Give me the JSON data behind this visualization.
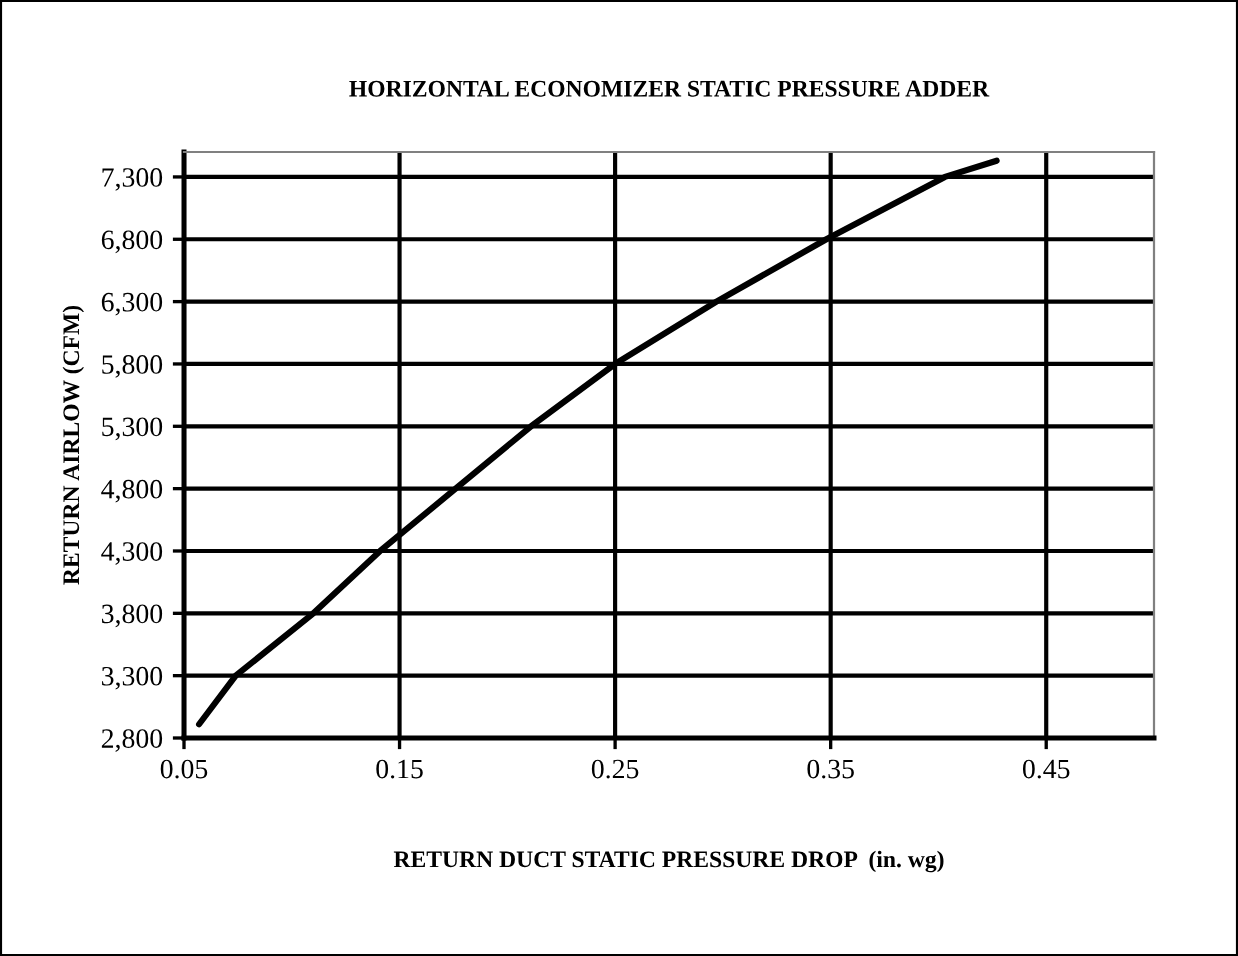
{
  "chart_data": {
    "type": "line",
    "title": "HORIZONTAL ECONOMIZER STATIC PRESSURE ADDER",
    "xlabel": "RETURN DUCT STATIC PRESSURE DROP  (in. wg)",
    "ylabel": "RETURN AIRLOW (CFM)",
    "series": [
      {
        "color": "#000000",
        "x": [
          0.057,
          0.074,
          0.11,
          0.141,
          0.176,
          0.211,
          0.25,
          0.297,
          0.348,
          0.403,
          0.427
        ],
        "values": [
          2910,
          3300,
          3800,
          4300,
          4800,
          5300,
          5800,
          6300,
          6800,
          7300,
          7430
        ]
      }
    ],
    "xlim": [
      0.05,
      0.5
    ],
    "xticks": [
      0.05,
      0.15,
      0.25,
      0.35,
      0.45
    ],
    "ylim": [
      2800,
      7500
    ],
    "yticks": [
      {
        "value": 2800,
        "label": "2,800"
      },
      {
        "value": 3300,
        "label": "3,300"
      },
      {
        "value": 3800,
        "label": "3,800"
      },
      {
        "value": 4300,
        "label": "4,300"
      },
      {
        "value": 4800,
        "label": "4,800"
      },
      {
        "value": 5300,
        "label": "5,300"
      },
      {
        "value": 5800,
        "label": "5,800"
      },
      {
        "value": 6300,
        "label": "6,300"
      },
      {
        "value": 6800,
        "label": "6,800"
      },
      {
        "value": 7300,
        "label": "7,300"
      }
    ],
    "grid": true,
    "marker": "none",
    "line_style": "solid"
  }
}
